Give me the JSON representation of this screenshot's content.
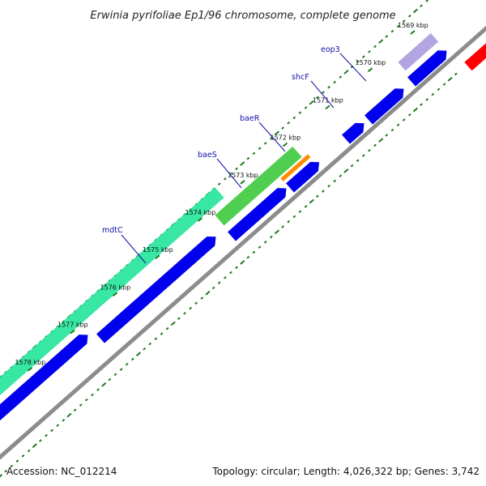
{
  "map": {
    "title": "Erwinia pyrifoliae Ep1/96 chromosome, complete genome",
    "accession": "Accession: NC_012214",
    "summary": "Topology: circular; Length: 4,026,322 bp; Genes: 3,742"
  },
  "colors": {
    "backbone": "#8c8c8c",
    "dots": "#1f7a1f",
    "cds": "#0000ee",
    "label": "#1010aa",
    "feature_green": "#3cc93c",
    "feature_mint": "#2ee6a0",
    "feature_orange": "#ff8a00",
    "feature_red": "#ff0000",
    "feature_lavender": "#9a86d8"
  },
  "ticks": [
    {
      "label": "1569 kbp"
    },
    {
      "label": "1570 kbp"
    },
    {
      "label": "1571 kbp"
    },
    {
      "label": "1572 kbp"
    },
    {
      "label": "1573 kbp"
    },
    {
      "label": "1574 kbp"
    },
    {
      "label": "1575 kbp"
    },
    {
      "label": "1576 kbp"
    },
    {
      "label": "1577 kbp"
    },
    {
      "label": "1578 kbp"
    }
  ],
  "gene_labels": [
    {
      "text": "eop3"
    },
    {
      "text": "shcF"
    },
    {
      "text": "baeR"
    },
    {
      "text": "baeS"
    },
    {
      "text": "mdtC"
    }
  ]
}
